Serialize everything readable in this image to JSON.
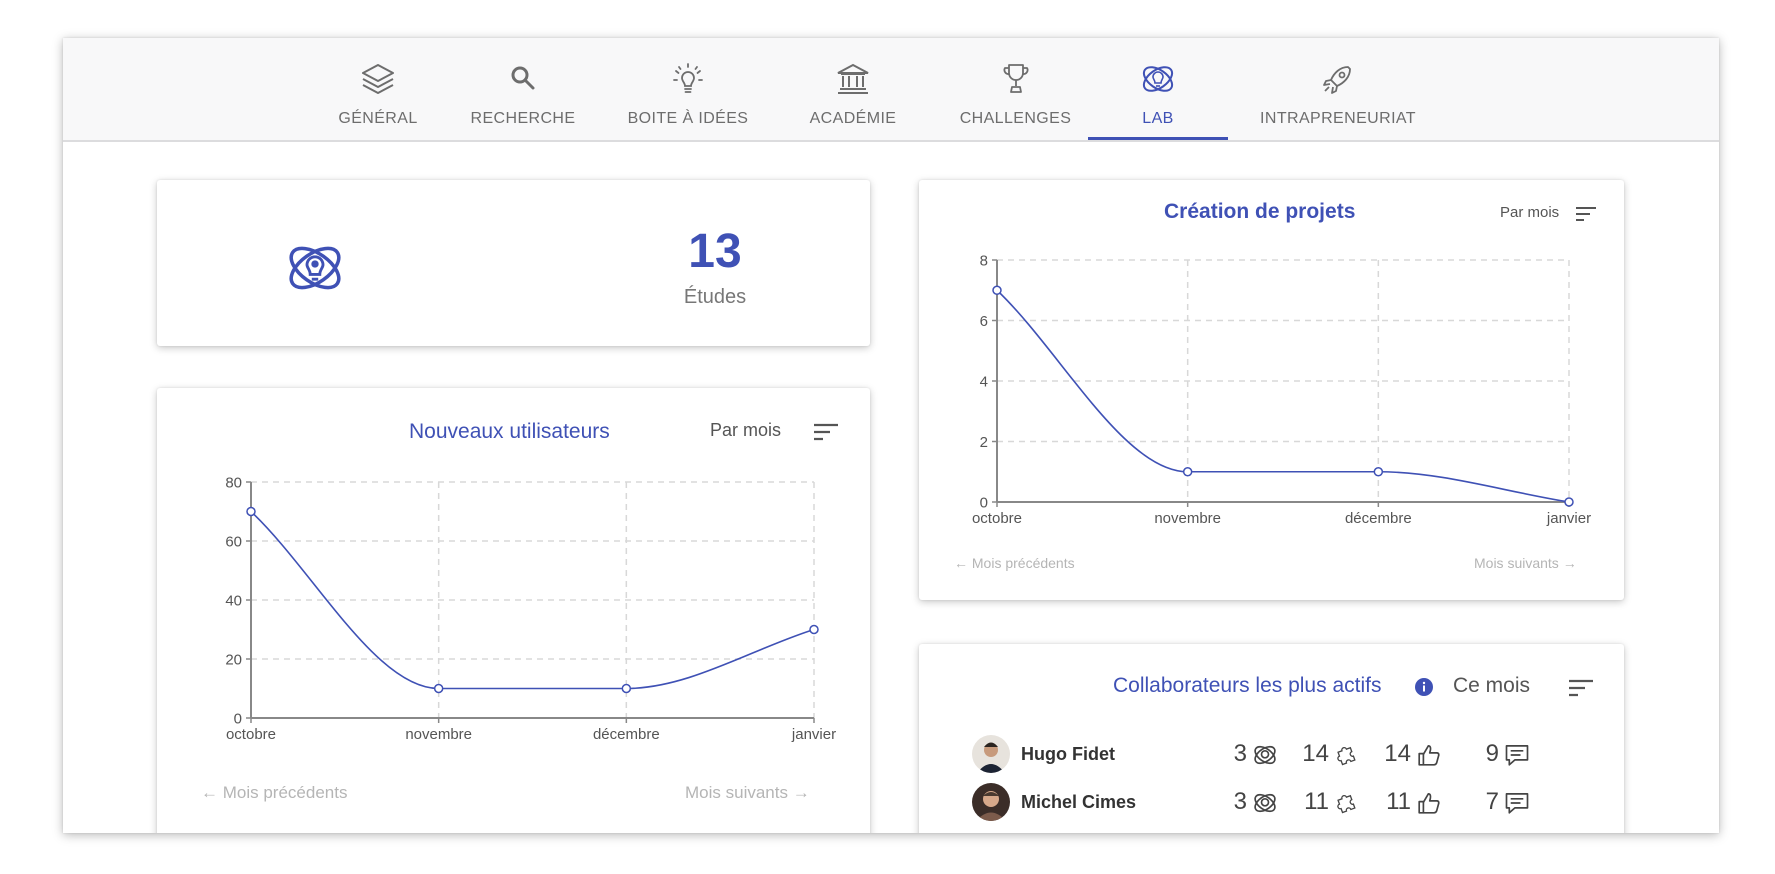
{
  "nav": {
    "tabs": [
      {
        "label": "GÉNÉRAL",
        "icon": "layers-icon"
      },
      {
        "label": "RECHERCHE",
        "icon": "search-icon"
      },
      {
        "label": "BOITE À IDÉES",
        "icon": "lightbulb-icon"
      },
      {
        "label": "ACADÉMIE",
        "icon": "academy-icon"
      },
      {
        "label": "CHALLENGES",
        "icon": "trophy-icon"
      },
      {
        "label": "LAB",
        "icon": "lab-atom-icon"
      },
      {
        "label": "INTRAPRENEURIAT",
        "icon": "rocket-icon"
      }
    ],
    "active_tab": "LAB"
  },
  "stat": {
    "value": "13",
    "label": "Études",
    "icon": "lab-atom-icon"
  },
  "new_users": {
    "title": "Nouveaux utilisateurs",
    "period": "Par mois",
    "prev_label": "Mois précédents",
    "next_label": "Mois suivants"
  },
  "projects": {
    "title": "Création de projets",
    "period": "Par mois",
    "prev_label": "Mois précédents",
    "next_label": "Mois suivants"
  },
  "collaborators": {
    "title": "Collaborateurs les plus actifs",
    "period": "Ce mois",
    "rows": [
      {
        "name": "Hugo Fidet",
        "labs": "3",
        "ideas": "14",
        "likes": "14",
        "comments": "9"
      },
      {
        "name": "Michel Cimes",
        "labs": "3",
        "ideas": "11",
        "likes": "11",
        "comments": "7"
      }
    ]
  },
  "colors": {
    "accent": "#3f51b5",
    "grid": "#d8d8d8",
    "axis": "#888888"
  },
  "chart_data": [
    {
      "type": "line",
      "title": "Nouveaux utilisateurs",
      "categories": [
        "octobre",
        "novembre",
        "décembre",
        "janvier"
      ],
      "values": [
        70,
        10,
        10,
        30
      ],
      "ylim": [
        0,
        80
      ],
      "yticks": [
        0,
        20,
        40,
        60,
        80
      ],
      "grid": true
    },
    {
      "type": "line",
      "title": "Création de projets",
      "categories": [
        "octobre",
        "novembre",
        "décembre",
        "janvier"
      ],
      "values": [
        7,
        1,
        1,
        0
      ],
      "ylim": [
        0,
        8
      ],
      "yticks": [
        0,
        2,
        4,
        6,
        8
      ],
      "grid": true
    }
  ]
}
